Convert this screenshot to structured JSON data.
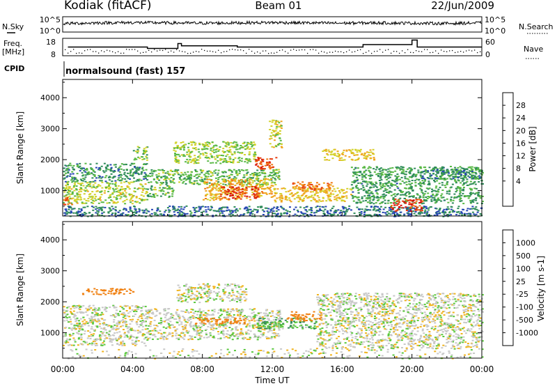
{
  "header": {
    "station": "Kodiak (fitACF)",
    "beam": "Beam 01",
    "date": "22/Jun/2009"
  },
  "top_panels": {
    "nsky_label": "N.Sky",
    "nsky_ticks": [
      "10^5",
      "10^0"
    ],
    "nsearch_label": "N.Search",
    "nsearch_ticks": [
      "10^5",
      "10^0"
    ],
    "freq_label_1": "Freq.",
    "freq_label_2": "[MHz]",
    "freq_ticks": [
      "18",
      "8"
    ],
    "nave_label": "Nave",
    "nave_ticks": [
      "60",
      "0"
    ],
    "cpid_label": "CPID",
    "cpid_value": "normalsound (fast) 157"
  },
  "axes": {
    "ylabel": "Slant Range [km]",
    "yticks": [
      1000,
      2000,
      3000,
      4000
    ],
    "ylim": [
      180,
      4590
    ],
    "xlabel": "Time UT",
    "xticks": [
      "00:00",
      "04:00",
      "08:00",
      "12:00",
      "16:00",
      "20:00",
      "00:00"
    ],
    "xlim_hours": [
      0,
      24
    ]
  },
  "colorbars": {
    "power": {
      "label": "Power [dB]",
      "ticks": [
        "4",
        "8",
        "12",
        "16",
        "20",
        "24",
        "28"
      ],
      "colors": [
        "#0a14e6",
        "#2646b4",
        "#2f8c5a",
        "#58b844",
        "#d2d22a",
        "#f0a51e",
        "#f07814",
        "#e63c0f",
        "#d20a0a"
      ]
    },
    "velocity": {
      "label": "Velocity [m s-1]",
      "ticks": [
        "1000",
        "500",
        "100",
        "25",
        "-25",
        "-100",
        "-500",
        "-1000"
      ],
      "colors": [
        "#1e32c8",
        "#2d55aa",
        "#378c5a",
        "#5ac83c",
        "#c8c8c8",
        "#f0b41e",
        "#f08214",
        "#eb4b0f",
        "#dc0a0a"
      ]
    }
  },
  "chart_data": [
    {
      "type": "heatmap",
      "title": "Power",
      "xlabel": "Time UT",
      "ylabel": "Slant Range [km]",
      "x_units": "hours UT",
      "colorbar_label": "Power [dB]",
      "zlim": [
        0,
        30
      ],
      "regions": [
        {
          "t0": 0.0,
          "t1": 24.0,
          "r0": 180,
          "r1": 520,
          "z": 6
        },
        {
          "t0": 0.0,
          "t1": 4.8,
          "r0": 600,
          "r1": 1300,
          "z": 14
        },
        {
          "t0": 0.0,
          "t1": 0.5,
          "r0": 550,
          "r1": 800,
          "z": 24
        },
        {
          "t0": 0.0,
          "t1": 4.8,
          "r0": 1300,
          "r1": 1900,
          "z": 8
        },
        {
          "t0": 4.0,
          "t1": 4.8,
          "r0": 2000,
          "r1": 2450,
          "z": 12
        },
        {
          "t0": 4.8,
          "t1": 6.3,
          "r0": 800,
          "r1": 1700,
          "z": 11
        },
        {
          "t0": 6.3,
          "t1": 12.4,
          "r0": 1200,
          "r1": 1700,
          "z": 11
        },
        {
          "t0": 6.3,
          "t1": 11.0,
          "r0": 1900,
          "r1": 2600,
          "z": 13
        },
        {
          "t0": 8.0,
          "t1": 12.0,
          "r0": 700,
          "r1": 1400,
          "z": 18
        },
        {
          "t0": 9.0,
          "t1": 11.2,
          "r0": 750,
          "r1": 1150,
          "z": 26
        },
        {
          "t0": 11.0,
          "t1": 12.2,
          "r0": 1700,
          "r1": 2100,
          "z": 26
        },
        {
          "t0": 11.8,
          "t1": 12.5,
          "r0": 2400,
          "r1": 3300,
          "z": 15
        },
        {
          "t0": 12.0,
          "t1": 16.5,
          "r0": 650,
          "r1": 1100,
          "z": 17
        },
        {
          "t0": 13.0,
          "t1": 15.5,
          "r0": 1000,
          "r1": 1300,
          "z": 22
        },
        {
          "t0": 14.8,
          "t1": 17.8,
          "r0": 2000,
          "r1": 2350,
          "z": 17
        },
        {
          "t0": 16.5,
          "t1": 24.0,
          "r0": 600,
          "r1": 1800,
          "z": 9
        },
        {
          "t0": 18.7,
          "t1": 20.6,
          "r0": 350,
          "r1": 750,
          "z": 27
        },
        {
          "t0": 20.5,
          "t1": 24.0,
          "r0": 1400,
          "r1": 1700,
          "z": 7
        }
      ]
    },
    {
      "type": "heatmap",
      "title": "Velocity",
      "xlabel": "Time UT",
      "ylabel": "Slant Range [km]",
      "x_units": "hours UT",
      "colorbar_label": "Velocity [m s-1]",
      "regions": [
        {
          "t0": 0.0,
          "t1": 24.0,
          "r0": 180,
          "r1": 500,
          "v": 0,
          "s": 0.22
        },
        {
          "t0": 0.0,
          "t1": 4.8,
          "r0": 600,
          "r1": 1900,
          "v": 0
        },
        {
          "t0": 1.0,
          "t1": 4.0,
          "r0": 2250,
          "r1": 2450,
          "v": -150
        },
        {
          "t0": 4.8,
          "t1": 12.4,
          "r0": 800,
          "r1": 1800,
          "v": 0
        },
        {
          "t0": 6.5,
          "t1": 10.5,
          "r0": 2000,
          "r1": 2600,
          "v": 0
        },
        {
          "t0": 7.5,
          "t1": 11.0,
          "r0": 1300,
          "r1": 1500,
          "v": -150
        },
        {
          "t0": 11.0,
          "t1": 14.5,
          "r0": 1150,
          "r1": 1500,
          "v": 60
        },
        {
          "t0": 12.8,
          "t1": 14.8,
          "r0": 1400,
          "r1": 1700,
          "v": -150
        },
        {
          "t0": 14.5,
          "t1": 24.0,
          "r0": 500,
          "r1": 2300,
          "v": 0
        }
      ]
    },
    {
      "type": "line",
      "title": "N.Sky",
      "x": [
        0,
        2,
        4,
        6,
        8,
        10,
        12,
        14,
        16,
        18,
        20,
        22,
        24
      ],
      "y_fraction": [
        0.55,
        0.6,
        0.62,
        0.6,
        0.58,
        0.6,
        0.62,
        0.6,
        0.58,
        0.6,
        0.58,
        0.56,
        0.6
      ]
    },
    {
      "type": "line",
      "title": "Freq.",
      "x": [
        0.3,
        4.85,
        4.85,
        6.6,
        6.6,
        6.8,
        6.8,
        10.0,
        10.0,
        17.2,
        17.2,
        18.8,
        18.8,
        20.0,
        20.0,
        20.3,
        20.3,
        24.0
      ],
      "y": [
        13,
        13,
        12.2,
        12.2,
        15,
        15,
        13.7,
        13.7,
        13,
        13,
        14.4,
        14.4,
        14.4,
        14.4,
        17,
        17,
        13,
        13
      ]
    }
  ]
}
